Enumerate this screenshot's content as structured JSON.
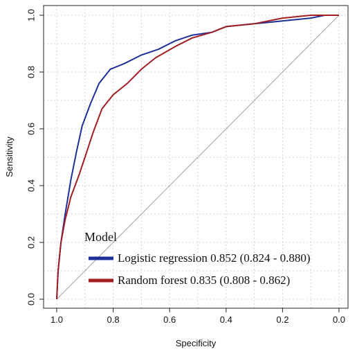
{
  "chart_data": {
    "type": "line",
    "xlabel": "Specificity",
    "ylabel": "Sensitivity",
    "xlim": [
      1.0,
      0.0
    ],
    "ylim": [
      0.0,
      1.0
    ],
    "x_reversed": true,
    "x_ticks": [
      "1.0",
      "0.8",
      "0.6",
      "0.4",
      "0.2",
      "0.0"
    ],
    "y_ticks": [
      "0.0",
      "0.2",
      "0.4",
      "0.6",
      "0.8",
      "1.0"
    ],
    "grid": true,
    "legend": {
      "title": "Model",
      "placement": "bottom-right"
    },
    "reference_line": {
      "from": [
        1.0,
        0.0
      ],
      "to": [
        0.0,
        1.0
      ],
      "color": "#a0a0a0"
    },
    "series": [
      {
        "name": "Logistic regression 0.852 (0.824 - 0.880)",
        "color": "#1f2f9a",
        "points": [
          [
            1.0,
            0.0
          ],
          [
            0.995,
            0.1
          ],
          [
            0.985,
            0.2
          ],
          [
            0.97,
            0.3
          ],
          [
            0.95,
            0.42
          ],
          [
            0.93,
            0.52
          ],
          [
            0.91,
            0.61
          ],
          [
            0.88,
            0.69
          ],
          [
            0.85,
            0.76
          ],
          [
            0.81,
            0.81
          ],
          [
            0.76,
            0.83
          ],
          [
            0.7,
            0.86
          ],
          [
            0.64,
            0.88
          ],
          [
            0.58,
            0.91
          ],
          [
            0.52,
            0.93
          ],
          [
            0.45,
            0.94
          ],
          [
            0.4,
            0.96
          ],
          [
            0.3,
            0.97
          ],
          [
            0.2,
            0.98
          ],
          [
            0.1,
            0.99
          ],
          [
            0.05,
            1.0
          ],
          [
            0.0,
            1.0
          ]
        ]
      },
      {
        "name": "Random forest 0.835 (0.808 - 0.862)",
        "color": "#a01e22",
        "points": [
          [
            1.0,
            0.0
          ],
          [
            0.995,
            0.1
          ],
          [
            0.985,
            0.2
          ],
          [
            0.97,
            0.28
          ],
          [
            0.95,
            0.36
          ],
          [
            0.92,
            0.44
          ],
          [
            0.9,
            0.5
          ],
          [
            0.87,
            0.59
          ],
          [
            0.84,
            0.67
          ],
          [
            0.8,
            0.72
          ],
          [
            0.75,
            0.76
          ],
          [
            0.7,
            0.81
          ],
          [
            0.65,
            0.85
          ],
          [
            0.58,
            0.89
          ],
          [
            0.52,
            0.92
          ],
          [
            0.45,
            0.94
          ],
          [
            0.4,
            0.96
          ],
          [
            0.3,
            0.97
          ],
          [
            0.2,
            0.99
          ],
          [
            0.1,
            1.0
          ],
          [
            0.0,
            1.0
          ]
        ]
      }
    ]
  }
}
